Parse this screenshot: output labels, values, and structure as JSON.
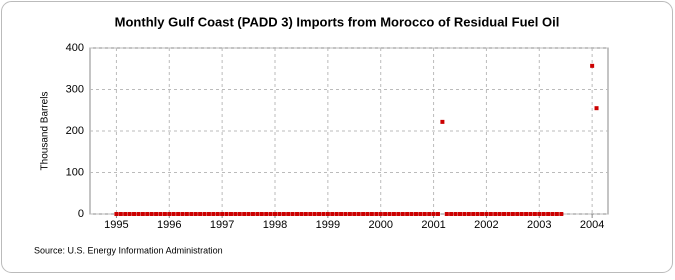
{
  "chart_data": {
    "type": "scatter",
    "title": "Monthly Gulf Coast (PADD 3) Imports from Morocco of Residual Fuel Oil",
    "y_label": "Thousand Barrels",
    "source": "Source: U.S. Energy Information Administration",
    "series": [
      {
        "color": "#cc0000",
        "x": [
          1995,
          1995.083,
          1995.167,
          1995.25,
          1995.333,
          1995.417,
          1995.5,
          1995.583,
          1995.667,
          1995.75,
          1995.833,
          1995.917,
          1996,
          1996.083,
          1996.167,
          1996.25,
          1996.333,
          1996.417,
          1996.5,
          1996.583,
          1996.667,
          1996.75,
          1996.833,
          1996.917,
          1997,
          1997.083,
          1997.167,
          1997.25,
          1997.333,
          1997.417,
          1997.5,
          1997.583,
          1997.667,
          1997.75,
          1997.833,
          1997.917,
          1998,
          1998.083,
          1998.167,
          1998.25,
          1998.333,
          1998.417,
          1998.5,
          1998.583,
          1998.667,
          1998.75,
          1998.833,
          1998.917,
          1999,
          1999.083,
          1999.167,
          1999.25,
          1999.333,
          1999.417,
          1999.5,
          1999.583,
          1999.667,
          1999.75,
          1999.833,
          1999.917,
          2000,
          2000.083,
          2000.167,
          2000.25,
          2000.333,
          2000.417,
          2000.5,
          2000.583,
          2000.667,
          2000.75,
          2000.833,
          2000.917,
          2001,
          2001.083,
          2001.167,
          2001.25,
          2001.333,
          2001.417,
          2001.5,
          2001.583,
          2001.667,
          2001.75,
          2001.833,
          2001.917,
          2002,
          2002.083,
          2002.167,
          2002.25,
          2002.333,
          2002.417,
          2002.5,
          2002.583,
          2002.667,
          2002.75,
          2002.833,
          2002.917,
          2003,
          2003.083,
          2003.167,
          2003.25,
          2003.333,
          2003.417,
          2004,
          2004.083
        ],
        "values": [
          0,
          0,
          0,
          0,
          0,
          0,
          0,
          0,
          0,
          0,
          0,
          0,
          0,
          0,
          0,
          0,
          0,
          0,
          0,
          0,
          0,
          0,
          0,
          0,
          0,
          0,
          0,
          0,
          0,
          0,
          0,
          0,
          0,
          0,
          0,
          0,
          0,
          0,
          0,
          0,
          0,
          0,
          0,
          0,
          0,
          0,
          0,
          0,
          0,
          0,
          0,
          0,
          0,
          0,
          0,
          0,
          0,
          0,
          0,
          0,
          0,
          0,
          0,
          0,
          0,
          0,
          0,
          0,
          0,
          0,
          0,
          0,
          0,
          0,
          222,
          0,
          0,
          0,
          0,
          0,
          0,
          0,
          0,
          0,
          0,
          0,
          0,
          0,
          0,
          0,
          0,
          0,
          0,
          0,
          0,
          0,
          0,
          0,
          0,
          0,
          0,
          0,
          357,
          255
        ]
      }
    ],
    "xlim": [
      1994.5,
      2004.3
    ],
    "xticks": [
      1995,
      1996,
      1997,
      1998,
      1999,
      2000,
      2001,
      2002,
      2003,
      2004
    ],
    "ylim": [
      0,
      400
    ],
    "yticks": [
      0,
      100,
      200,
      300,
      400
    ],
    "grid": true
  }
}
